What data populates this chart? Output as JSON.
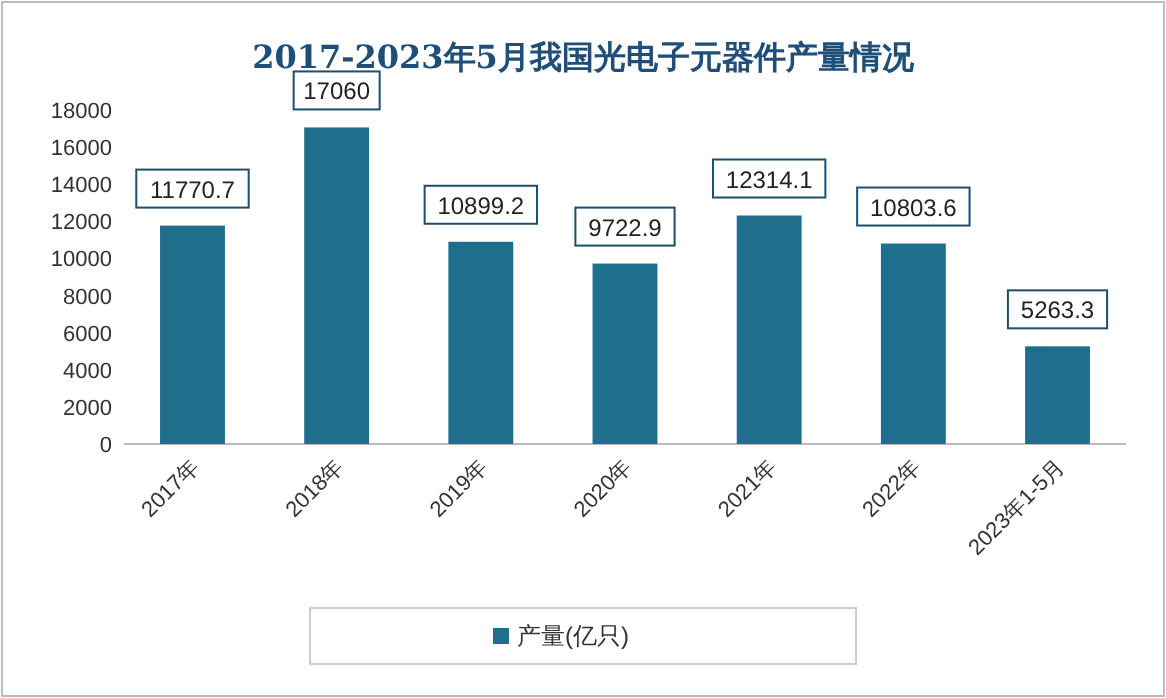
{
  "chart_data": {
    "type": "bar",
    "title": "2017-2023年5月我国光电子元器件产量情况",
    "categories": [
      "2017年",
      "2018年",
      "2019年",
      "2020年",
      "2021年",
      "2022年",
      "2023年1-5月"
    ],
    "series": [
      {
        "name": "产量(亿只)",
        "color": "#1f6e8c",
        "values": [
          11770.7,
          17060,
          10899.2,
          9722.9,
          12314.1,
          10803.6,
          5263.3
        ]
      }
    ],
    "ylim": [
      0,
      18000
    ],
    "yticks": [
      0,
      2000,
      4000,
      6000,
      8000,
      10000,
      12000,
      14000,
      16000,
      18000
    ],
    "grid": false,
    "legend": "bottom",
    "data_labels": true
  }
}
